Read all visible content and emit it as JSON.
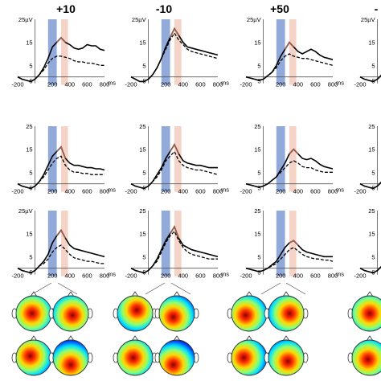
{
  "figure": {
    "column_titles": [
      "+10",
      "-10",
      "+50",
      "-"
    ],
    "y_unit": "µV",
    "x_unit": "ms",
    "highlight_windows": [
      {
        "label": "",
        "x_range": [
          150,
          250
        ],
        "color": "#7f9bd4"
      },
      {
        "label": "",
        "x_range": [
          300,
          380
        ],
        "color": "#f5cbbd"
      }
    ],
    "series_styles": [
      {
        "name": "",
        "stroke": "#000000",
        "dash": "none",
        "solid_peak_color": "#9a5d4a"
      },
      {
        "name": "",
        "stroke": "#000000",
        "dash": "4,2"
      }
    ],
    "colormap": [
      "#00008f",
      "#0050ff",
      "#00dfff",
      "#8fff70",
      "#ffd800",
      "#ff3000",
      "#8f0000"
    ]
  },
  "chart_data": [
    {
      "type": "line",
      "row": 1,
      "col": 1,
      "title": "+10",
      "ylabel": "µV",
      "xlabel": "ms",
      "x": [
        -200,
        -150,
        -100,
        -50,
        0,
        50,
        100,
        150,
        200,
        250,
        300,
        350,
        400,
        450,
        500,
        550,
        600,
        650,
        700,
        750,
        800
      ],
      "ylim": [
        -5,
        25
      ],
      "xlim": [
        -200,
        800
      ],
      "yticks": [
        5,
        15,
        25
      ],
      "xticks": [
        -200,
        0,
        200,
        400,
        600,
        800
      ],
      "series": [
        {
          "values": [
            0,
            -1,
            -1.5,
            -2,
            -1,
            1,
            4,
            8,
            13,
            15,
            17,
            15,
            14,
            12.5,
            12,
            12.5,
            14,
            13.5,
            13.5,
            12,
            11.5
          ]
        },
        {
          "values": [
            0,
            -1,
            -1.5,
            -2,
            -1,
            1,
            3,
            6,
            8,
            9,
            9,
            8.5,
            8,
            7,
            6.5,
            6.5,
            6,
            6,
            5.5,
            5,
            5
          ]
        }
      ]
    },
    {
      "type": "line",
      "row": 1,
      "col": 2,
      "title": "-10",
      "ylabel": "µV",
      "xlabel": "ms",
      "x": [
        -200,
        -150,
        -100,
        -50,
        0,
        50,
        100,
        150,
        200,
        250,
        300,
        350,
        400,
        450,
        500,
        550,
        600,
        650,
        700,
        750,
        800
      ],
      "ylim": [
        -5,
        25
      ],
      "xlim": [
        -200,
        800
      ],
      "yticks": [
        5,
        15,
        25
      ],
      "xticks": [
        -200,
        0,
        200,
        400,
        600,
        800
      ],
      "series": [
        {
          "values": [
            0,
            -1,
            -2,
            -2,
            -1,
            1,
            4,
            8,
            13,
            17,
            21,
            18,
            15,
            13,
            12.5,
            12,
            11.5,
            11,
            10.5,
            10,
            9.5
          ]
        },
        {
          "values": [
            0,
            -1,
            -2,
            -2,
            -1,
            1,
            4,
            8,
            12,
            16,
            19,
            16,
            14,
            12,
            11,
            10.5,
            10,
            9.5,
            9,
            8.5,
            8
          ]
        }
      ]
    },
    {
      "type": "line",
      "row": 1,
      "col": 3,
      "title": "+50",
      "ylabel": "µV",
      "xlabel": "ms",
      "x": [
        -200,
        -150,
        -100,
        -50,
        0,
        50,
        100,
        150,
        200,
        250,
        300,
        350,
        400,
        450,
        500,
        550,
        600,
        650,
        700,
        750,
        800
      ],
      "ylim": [
        -5,
        25
      ],
      "xlim": [
        -200,
        800
      ],
      "yticks": [
        5,
        15,
        25
      ],
      "xticks": [
        -200,
        0,
        200,
        400,
        600,
        800
      ],
      "series": [
        {
          "values": [
            0,
            -0.5,
            -1,
            -1.5,
            -1,
            0.5,
            2,
            5,
            9,
            12,
            15,
            13,
            11,
            10,
            11,
            12,
            11,
            9.5,
            8.5,
            8,
            7.5
          ]
        },
        {
          "values": [
            0,
            -0.5,
            -1,
            -1.5,
            -1,
            0.5,
            2,
            4,
            7,
            9,
            10,
            9,
            8.5,
            8,
            8,
            7.5,
            7,
            6.5,
            6,
            5.5,
            5
          ]
        }
      ]
    },
    {
      "type": "line",
      "row": 1,
      "col": 4,
      "title": "-",
      "ylabel": "µV",
      "xlabel": "ms",
      "x": [
        -200,
        -150,
        -100,
        -50,
        0,
        50,
        100,
        150,
        200
      ],
      "ylim": [
        -5,
        25
      ],
      "xlim": [
        -200,
        800
      ],
      "yticks": [
        5,
        15,
        25
      ],
      "xticks": [
        -200,
        0,
        200,
        400,
        600,
        800
      ],
      "series": [
        {
          "values": [
            0,
            -1,
            -1.5,
            -2,
            -1,
            1,
            4,
            10,
            18
          ]
        },
        {
          "values": [
            0,
            -1,
            -1.5,
            -2,
            -1,
            1,
            4,
            9,
            16
          ]
        }
      ]
    },
    {
      "type": "line",
      "row": 2,
      "col": 1,
      "title": "",
      "ylabel": "",
      "xlabel": "ms",
      "x": [
        -200,
        -150,
        -100,
        -50,
        0,
        50,
        100,
        150,
        200,
        250,
        300,
        350,
        400,
        450,
        500,
        550,
        600,
        650,
        700,
        750,
        800
      ],
      "ylim": [
        -5,
        25
      ],
      "xlim": [
        -200,
        800
      ],
      "yticks": [
        5,
        15,
        25
      ],
      "xticks": [
        -200,
        0,
        200,
        400,
        600,
        800
      ],
      "series": [
        {
          "values": [
            0,
            -1,
            -1.5,
            -2,
            -1,
            1,
            4,
            8,
            12,
            14,
            16,
            11,
            9,
            8,
            8,
            7.5,
            7,
            7,
            6.5,
            6.5,
            6
          ]
        },
        {
          "values": [
            0,
            -1,
            -1.5,
            -2,
            -1,
            1,
            3,
            6,
            9,
            11,
            12,
            8,
            6,
            5,
            5,
            4.5,
            4.5,
            4,
            4,
            4,
            4
          ]
        }
      ]
    },
    {
      "type": "line",
      "row": 2,
      "col": 2,
      "title": "",
      "ylabel": "",
      "xlabel": "ms",
      "x": [
        -200,
        -150,
        -100,
        -50,
        0,
        50,
        100,
        150,
        200,
        250,
        300,
        350,
        400,
        450,
        500,
        550,
        600,
        650,
        700,
        750,
        800
      ],
      "ylim": [
        -5,
        25
      ],
      "xlim": [
        -200,
        800
      ],
      "yticks": [
        5,
        15,
        25
      ],
      "xticks": [
        -200,
        0,
        200,
        400,
        600,
        800
      ],
      "series": [
        {
          "values": [
            0,
            -1,
            -1.5,
            -2,
            -1,
            1,
            4,
            7,
            11,
            14,
            17,
            13,
            10,
            9,
            8.5,
            8,
            8,
            7.5,
            7,
            7,
            7
          ]
        },
        {
          "values": [
            0,
            -1,
            -1.5,
            -2,
            -1,
            1,
            3,
            6,
            10,
            12,
            14,
            10,
            8,
            7,
            6.5,
            6,
            6,
            5.5,
            5,
            4.5,
            4
          ]
        }
      ]
    },
    {
      "type": "line",
      "row": 2,
      "col": 3,
      "title": "",
      "ylabel": "",
      "xlabel": "ms",
      "x": [
        -200,
        -150,
        -100,
        -50,
        0,
        50,
        100,
        150,
        200,
        250,
        300,
        350,
        400,
        450,
        500,
        550,
        600,
        650,
        700,
        750,
        800
      ],
      "ylim": [
        -5,
        25
      ],
      "xlim": [
        -200,
        800
      ],
      "yticks": [
        5,
        15,
        25
      ],
      "xticks": [
        -200,
        0,
        200,
        400,
        600,
        800
      ],
      "series": [
        {
          "values": [
            0,
            -0.5,
            -1,
            -1.5,
            -1,
            0,
            1.5,
            3,
            6,
            9,
            13,
            15,
            13,
            11,
            10.5,
            11,
            10,
            8.5,
            7.5,
            7,
            6.5
          ]
        },
        {
          "values": [
            0,
            -0.5,
            -1,
            -1.5,
            -1,
            0,
            1.5,
            3,
            5,
            7,
            9,
            10,
            9,
            7.5,
            7,
            7,
            6,
            5.5,
            5,
            5,
            5
          ]
        }
      ]
    },
    {
      "type": "line",
      "row": 2,
      "col": 4,
      "title": "",
      "ylabel": "",
      "xlabel": "ms",
      "x": [
        -200,
        -150,
        -100,
        -50,
        0,
        50,
        100,
        150,
        200
      ],
      "ylim": [
        -5,
        25
      ],
      "xlim": [
        -200,
        800
      ],
      "yticks": [
        5,
        15,
        25
      ],
      "xticks": [
        -200,
        0,
        200,
        400,
        600,
        800
      ],
      "series": [
        {
          "values": [
            0,
            -1,
            -1.5,
            -2,
            -1,
            1,
            4,
            8,
            14
          ]
        },
        {
          "values": [
            0,
            -1,
            -1.5,
            -2,
            -1,
            1,
            3,
            6,
            11
          ]
        }
      ]
    },
    {
      "type": "line",
      "row": 3,
      "col": 1,
      "title": "",
      "ylabel": "µV",
      "xlabel": "ms",
      "x": [
        -200,
        -150,
        -100,
        -50,
        0,
        50,
        100,
        150,
        200,
        250,
        300,
        350,
        400,
        450,
        500,
        550,
        600,
        650,
        700,
        750,
        800
      ],
      "ylim": [
        -5,
        25
      ],
      "xlim": [
        -200,
        800
      ],
      "yticks": [
        5,
        15,
        25
      ],
      "xticks": [
        -200,
        0,
        200,
        400,
        600,
        800
      ],
      "series": [
        {
          "values": [
            0,
            -1,
            -1.5,
            -2,
            -1,
            1,
            3,
            6,
            11,
            14,
            16.5,
            13,
            10,
            8.5,
            8,
            7.5,
            7,
            6.5,
            6,
            5.5,
            5
          ]
        },
        {
          "values": [
            0,
            -1,
            -1.5,
            -2,
            -1,
            1,
            2,
            4,
            7,
            9,
            10,
            8,
            6,
            4.5,
            4,
            3.5,
            3,
            3,
            2.5,
            2,
            2
          ]
        }
      ]
    },
    {
      "type": "line",
      "row": 3,
      "col": 2,
      "title": "",
      "ylabel": "",
      "xlabel": "ms",
      "x": [
        -200,
        -150,
        -100,
        -50,
        0,
        50,
        100,
        150,
        200,
        250,
        300,
        350,
        400,
        450,
        500,
        550,
        600,
        650,
        700,
        750,
        800
      ],
      "ylim": [
        -5,
        25
      ],
      "xlim": [
        -200,
        800
      ],
      "yticks": [
        5,
        15,
        25
      ],
      "xticks": [
        -200,
        0,
        200,
        400,
        600,
        800
      ],
      "series": [
        {
          "values": [
            0,
            -1,
            -1.5,
            -2,
            -1,
            1,
            4,
            8,
            12,
            15,
            18,
            13,
            10,
            9,
            8,
            7.5,
            7,
            6.5,
            6,
            5.5,
            5
          ]
        },
        {
          "values": [
            0,
            -1,
            -1.5,
            -2,
            -1,
            1,
            3,
            7,
            11,
            14,
            16,
            12,
            9,
            7,
            6,
            5.5,
            5,
            4.5,
            4,
            4,
            4
          ]
        }
      ]
    },
    {
      "type": "line",
      "row": 3,
      "col": 3,
      "title": "",
      "ylabel": "",
      "xlabel": "ms",
      "x": [
        -200,
        -150,
        -100,
        -50,
        0,
        50,
        100,
        150,
        200,
        250,
        300,
        350,
        400,
        450,
        500,
        550,
        600,
        650,
        700,
        750,
        800
      ],
      "ylim": [
        -5,
        25
      ],
      "xlim": [
        -200,
        800
      ],
      "yticks": [
        5,
        15,
        25
      ],
      "xticks": [
        -200,
        0,
        200,
        400,
        600,
        800
      ],
      "series": [
        {
          "values": [
            0,
            -0.5,
            -1,
            -1.5,
            -1,
            0,
            1.5,
            3,
            6,
            9,
            11,
            12,
            10,
            8,
            7,
            6.5,
            6,
            5.5,
            5,
            5,
            5
          ]
        },
        {
          "values": [
            0,
            -0.5,
            -1,
            -1.5,
            -1,
            0,
            1,
            2,
            4,
            6,
            8,
            9,
            7.5,
            6,
            5,
            4.5,
            4,
            4,
            3.5,
            3.5,
            3
          ]
        }
      ]
    },
    {
      "type": "line",
      "row": 3,
      "col": 4,
      "title": "",
      "ylabel": "",
      "xlabel": "ms",
      "x": [
        -200,
        -150,
        -100,
        -50,
        0,
        50,
        100,
        150,
        200
      ],
      "ylim": [
        -5,
        25
      ],
      "xlim": [
        -200,
        800
      ],
      "yticks": [
        5,
        15,
        25
      ],
      "xticks": [
        -200,
        0,
        200,
        400,
        600,
        800
      ],
      "series": [
        {
          "values": [
            0,
            -1,
            -1.5,
            -2,
            -1,
            1,
            3,
            6,
            10
          ]
        },
        {
          "values": [
            0,
            -1,
            -1.5,
            -2,
            -1,
            1,
            2,
            4,
            7
          ]
        }
      ]
    }
  ]
}
